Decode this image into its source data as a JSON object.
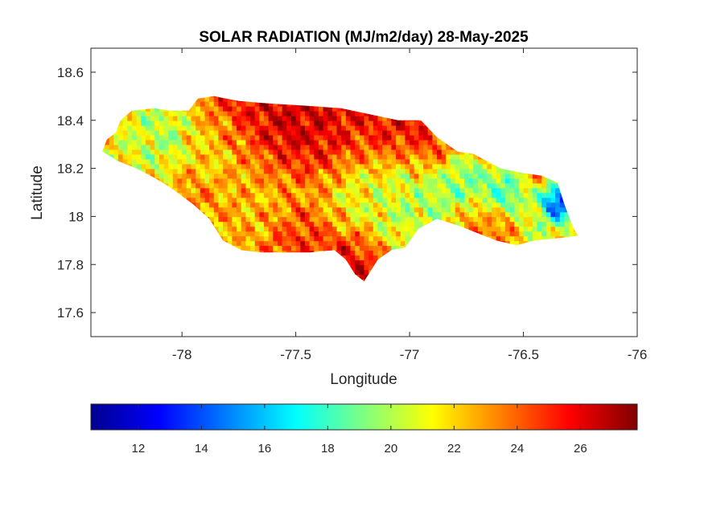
{
  "chart_data": {
    "type": "heatmap",
    "title": "SOLAR RADIATION (MJ/m2/day) 28-May-2025",
    "xlabel": "Longitude",
    "ylabel": "Latitude",
    "xlim": [
      -78.4,
      -76
    ],
    "ylim": [
      17.5,
      18.7
    ],
    "xticks": [
      -78,
      -77.5,
      -77,
      -76.5,
      -76
    ],
    "xtick_labels": [
      "-78",
      "-77.5",
      "-77",
      "-76.5",
      "-76"
    ],
    "yticks": [
      17.6,
      17.8,
      18,
      18.2,
      18.4,
      18.6
    ],
    "ytick_labels": [
      "17.6",
      "17.8",
      "18",
      "18.2",
      "18.4",
      "18.6"
    ],
    "grid": false,
    "colormap": "jet",
    "colorbar": {
      "orientation": "horizontal",
      "placement": "bottom",
      "range": [
        10.5,
        27.8
      ],
      "ticks": [
        12,
        14,
        16,
        18,
        20,
        22,
        24,
        26
      ],
      "tick_labels": [
        "12",
        "14",
        "16",
        "18",
        "20",
        "22",
        "24",
        "26"
      ]
    },
    "island_outline": [
      [
        -78.35,
        18.27
      ],
      [
        -78.33,
        18.32
      ],
      [
        -78.29,
        18.35
      ],
      [
        -78.27,
        18.4
      ],
      [
        -78.22,
        18.44
      ],
      [
        -78.12,
        18.45
      ],
      [
        -78.05,
        18.44
      ],
      [
        -77.97,
        18.44
      ],
      [
        -77.93,
        18.49
      ],
      [
        -77.86,
        18.5
      ],
      [
        -77.75,
        18.48
      ],
      [
        -77.62,
        18.47
      ],
      [
        -77.45,
        18.46
      ],
      [
        -77.3,
        18.45
      ],
      [
        -77.15,
        18.42
      ],
      [
        -77.05,
        18.4
      ],
      [
        -76.95,
        18.4
      ],
      [
        -76.88,
        18.33
      ],
      [
        -76.79,
        18.27
      ],
      [
        -76.72,
        18.26
      ],
      [
        -76.6,
        18.2
      ],
      [
        -76.5,
        18.18
      ],
      [
        -76.42,
        18.17
      ],
      [
        -76.35,
        18.14
      ],
      [
        -76.32,
        18.05
      ],
      [
        -76.28,
        17.95
      ],
      [
        -76.26,
        17.92
      ],
      [
        -76.34,
        17.91
      ],
      [
        -76.45,
        17.9
      ],
      [
        -76.53,
        17.88
      ],
      [
        -76.62,
        17.9
      ],
      [
        -76.7,
        17.93
      ],
      [
        -76.78,
        17.96
      ],
      [
        -76.88,
        17.99
      ],
      [
        -76.96,
        17.95
      ],
      [
        -77.02,
        17.87
      ],
      [
        -77.08,
        17.86
      ],
      [
        -77.14,
        17.82
      ],
      [
        -77.18,
        17.76
      ],
      [
        -77.2,
        17.73
      ],
      [
        -77.24,
        17.76
      ],
      [
        -77.28,
        17.82
      ],
      [
        -77.33,
        17.86
      ],
      [
        -77.44,
        17.85
      ],
      [
        -77.55,
        17.85
      ],
      [
        -77.65,
        17.85
      ],
      [
        -77.74,
        17.86
      ],
      [
        -77.82,
        17.9
      ],
      [
        -77.88,
        17.99
      ],
      [
        -77.95,
        18.05
      ],
      [
        -78.05,
        18.12
      ],
      [
        -78.12,
        18.16
      ],
      [
        -78.2,
        18.2
      ],
      [
        -78.28,
        18.23
      ]
    ],
    "field_features": [
      {
        "lon": -77.7,
        "lat": 18.42,
        "value": 27.0,
        "radius": 0.22
      },
      {
        "lon": -77.45,
        "lat": 18.4,
        "value": 26.6,
        "radius": 0.18
      },
      {
        "lon": -77.1,
        "lat": 18.37,
        "value": 26.2,
        "radius": 0.16
      },
      {
        "lon": -76.95,
        "lat": 18.34,
        "value": 26.8,
        "radius": 0.14
      },
      {
        "lon": -77.25,
        "lat": 17.82,
        "value": 26.8,
        "radius": 0.1
      },
      {
        "lon": -78.1,
        "lat": 18.33,
        "value": 19.0,
        "radius": 0.16
      },
      {
        "lon": -77.85,
        "lat": 18.28,
        "value": 20.5,
        "radius": 0.16
      },
      {
        "lon": -78.25,
        "lat": 18.28,
        "value": 21.0,
        "radius": 0.1
      },
      {
        "lon": -77.0,
        "lat": 18.1,
        "value": 19.0,
        "radius": 0.2
      },
      {
        "lon": -77.2,
        "lat": 18.05,
        "value": 21.2,
        "radius": 0.15
      },
      {
        "lon": -77.65,
        "lat": 18.05,
        "value": 22.0,
        "radius": 0.16
      },
      {
        "lon": -77.95,
        "lat": 18.1,
        "value": 23.5,
        "radius": 0.14
      },
      {
        "lon": -77.5,
        "lat": 17.9,
        "value": 25.6,
        "radius": 0.12
      },
      {
        "lon": -76.77,
        "lat": 18.14,
        "value": 18.0,
        "radius": 0.08
      },
      {
        "lon": -76.6,
        "lat": 18.08,
        "value": 16.5,
        "radius": 0.08
      },
      {
        "lon": -76.36,
        "lat": 18.04,
        "value": 11.0,
        "radius": 0.06
      },
      {
        "lon": -76.45,
        "lat": 17.95,
        "value": 19.5,
        "radius": 0.1
      },
      {
        "lon": -76.65,
        "lat": 17.93,
        "value": 24.0,
        "radius": 0.12
      }
    ],
    "background_value": 23.2
  }
}
